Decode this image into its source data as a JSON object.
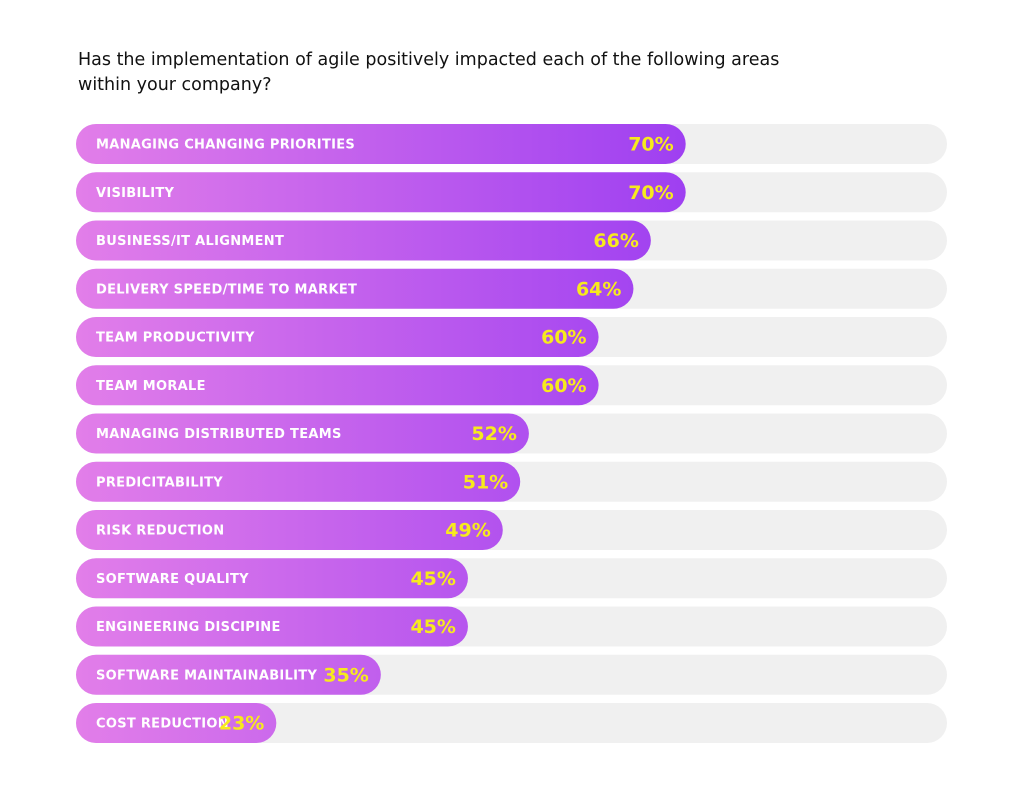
{
  "chart_data": {
    "type": "bar",
    "orientation": "horizontal",
    "title": "Has the implementation of agile positively impacted each of the following areas within your company?",
    "categories": [
      "MANAGING CHANGING PRIORITIES",
      "VISIBILITY",
      "BUSINESS/IT ALIGNMENT",
      "DELIVERY SPEED/TIME TO MARKET",
      "TEAM PRODUCTIVITY",
      "TEAM MORALE",
      "MANAGING DISTRIBUTED TEAMS",
      "PREDICITABILITY",
      "RISK REDUCTION",
      "SOFTWARE QUALITY",
      "ENGINEERING DISCIPINE",
      "SOFTWARE MAINTAINABILITY",
      "COST REDUCTION"
    ],
    "values": [
      70,
      70,
      66,
      64,
      60,
      60,
      52,
      51,
      49,
      45,
      45,
      35,
      23
    ],
    "value_labels": [
      "70%",
      "70%",
      "66%",
      "64%",
      "60%",
      "60%",
      "52%",
      "51%",
      "49%",
      "45%",
      "45%",
      "35%",
      "23%"
    ],
    "xlim": [
      0,
      100
    ],
    "gradient": [
      "#e27ee9",
      "#9638f2"
    ],
    "track_color": "#f0f0f0",
    "label_color": "#f7ea1d"
  }
}
